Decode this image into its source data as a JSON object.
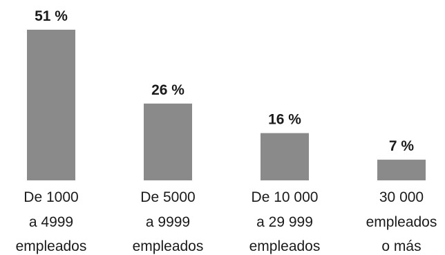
{
  "chart_data": {
    "type": "bar",
    "categories": [
      [
        "De 1000",
        "a 4999",
        "empleados"
      ],
      [
        "De 5000",
        "a 9999",
        "empleados"
      ],
      [
        "De 10 000",
        "a 29 999",
        "empleados"
      ],
      [
        "30 000",
        "empleados",
        "o más"
      ]
    ],
    "values": [
      51,
      26,
      16,
      7
    ],
    "value_labels": [
      "51 %",
      "26 %",
      "16 %",
      "7 %"
    ],
    "title": "",
    "xlabel": "",
    "ylabel": "",
    "ylim": [
      0,
      51
    ],
    "grid": false,
    "legend": "none",
    "bar_color": "#8a8a8a"
  }
}
